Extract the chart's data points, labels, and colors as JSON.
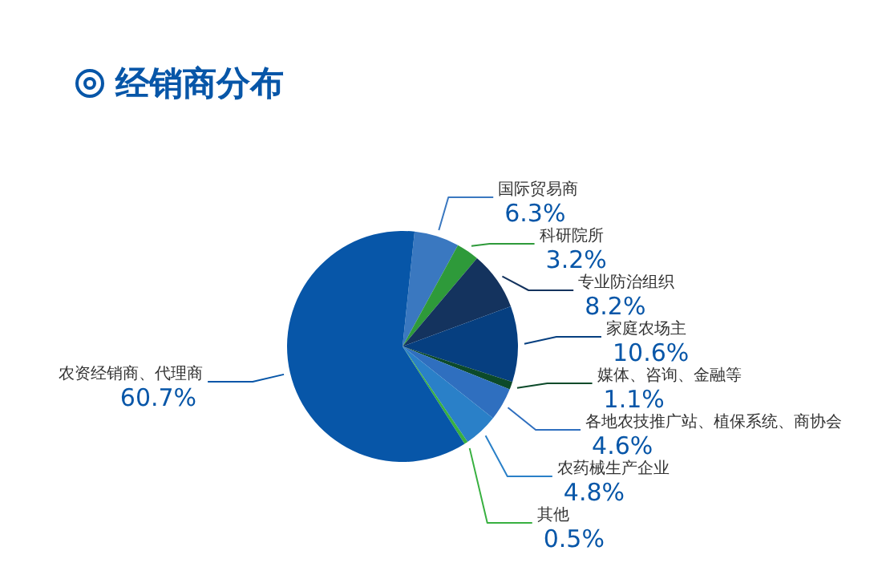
{
  "chart_data": {
    "type": "pie",
    "title": "经销商分布",
    "categories": [
      "国际贸易商",
      "科研院所",
      "专业防治组织",
      "家庭农场主",
      "媒体、咨询、金融等",
      "各地农技推广站、植保系统、商协会",
      "农药械生产企业",
      "其他",
      "农资经销商、代理商"
    ],
    "values": [
      6.3,
      3.2,
      8.2,
      10.6,
      1.1,
      4.6,
      4.8,
      0.5,
      60.7
    ],
    "colors": [
      "#3a78c0",
      "#2e9a3a",
      "#14335e",
      "#063f80",
      "#0c4a2a",
      "#2f6fbf",
      "#2a80c8",
      "#38b040",
      "#0756a8"
    ],
    "value_labels": [
      "6.3%",
      "3.2%",
      "8.2%",
      "10.6%",
      "1.1%",
      "4.6%",
      "4.8%",
      "0.5%",
      "60.7%"
    ],
    "legend": false
  }
}
